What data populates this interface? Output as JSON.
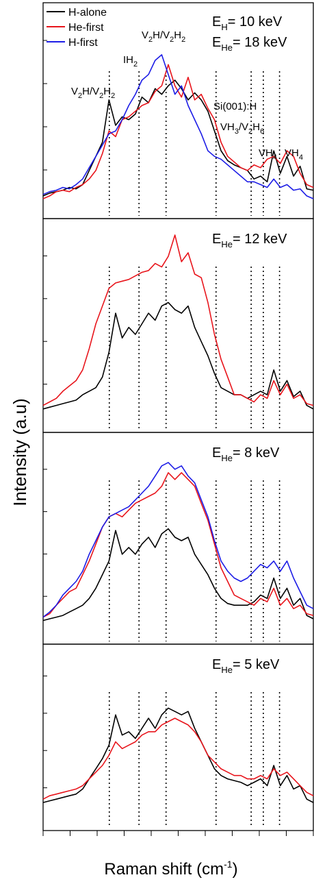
{
  "colors": {
    "H-alone": "#000000",
    "He-first": "#e8141b",
    "H-first": "#1c1ce6"
  },
  "legend": [
    {
      "name": "H-alone",
      "color": "#000000"
    },
    {
      "name": "He-first",
      "color": "#e8141b"
    },
    {
      "name": "H-first",
      "color": "#1c1ce6"
    }
  ],
  "chart_data": {
    "type": "line",
    "ylabel": "Intensity (a.u)",
    "xlabel_main": "Raman shift (cm",
    "xlabel_sup": "-1",
    "xlabel_close": ")",
    "x_tick_labels": "none",
    "y_tick_labels": "none",
    "ylim": [
      0,
      1
    ],
    "xlim": [
      0,
      100
    ],
    "panel_header": {
      "EH_main": "E",
      "EH_sub": "H",
      "EH_rest": "= 10 keV"
    },
    "peak_labels": [
      {
        "parts": [
          [
            "V",
            "n"
          ],
          [
            "2",
            "s"
          ],
          [
            "H/V",
            "n"
          ],
          [
            "2",
            "s"
          ],
          [
            "H",
            "n"
          ],
          [
            "2",
            "s"
          ]
        ]
      },
      {
        "parts": [
          [
            "IH",
            "n"
          ],
          [
            "2",
            "s"
          ]
        ]
      },
      {
        "parts": [
          [
            "V",
            "n"
          ],
          [
            "2",
            "s"
          ],
          [
            "H/V",
            "n"
          ],
          [
            "2",
            "s"
          ],
          [
            "H",
            "n"
          ],
          [
            "2",
            "s"
          ]
        ]
      },
      {
        "parts": [
          [
            "Si(001):H",
            "n"
          ]
        ]
      },
      {
        "parts": [
          [
            "VH",
            "n"
          ],
          [
            "3",
            "s"
          ],
          [
            "/V",
            "n"
          ],
          [
            "2",
            "s"
          ],
          [
            "H",
            "n"
          ],
          [
            "6",
            "s"
          ]
        ]
      },
      {
        "parts": [
          [
            "VH",
            "n"
          ],
          [
            "4",
            "s"
          ]
        ]
      },
      {
        "parts": [
          [
            "VH",
            "n"
          ],
          [
            "4",
            "s"
          ]
        ]
      }
    ],
    "peak_positions": [
      24.5,
      35.5,
      45.5,
      64.0,
      77.0,
      81.5,
      87.5
    ],
    "panels": [
      {
        "energy_main": "E",
        "energy_sub": "He",
        "energy_rest": "= 18 keV",
        "series": [
          {
            "name": "H-alone",
            "y": [
              0.02,
              0.04,
              0.05,
              0.06,
              0.08,
              0.07,
              0.1,
              0.2,
              0.3,
              0.4,
              0.7,
              0.52,
              0.58,
              0.56,
              0.6,
              0.72,
              0.68,
              0.78,
              0.74,
              0.8,
              0.84,
              0.78,
              0.7,
              0.75,
              0.7,
              0.62,
              0.48,
              0.34,
              0.27,
              0.24,
              0.22,
              0.2,
              0.14,
              0.16,
              0.12,
              0.34,
              0.18,
              0.3,
              0.16,
              0.23,
              0.07,
              0.06
            ]
          },
          {
            "name": "He-first",
            "y": [
              0.0,
              0.02,
              0.05,
              0.06,
              0.05,
              0.08,
              0.1,
              0.14,
              0.2,
              0.32,
              0.48,
              0.44,
              0.56,
              0.58,
              0.62,
              0.66,
              0.68,
              0.76,
              0.8,
              0.95,
              0.8,
              0.72,
              0.86,
              0.7,
              0.74,
              0.64,
              0.56,
              0.4,
              0.3,
              0.26,
              0.22,
              0.2,
              0.24,
              0.22,
              0.28,
              0.3,
              0.25,
              0.34,
              0.3,
              0.18,
              0.1,
              0.08
            ]
          },
          {
            "name": "H-first",
            "y": [
              0.03,
              0.05,
              0.06,
              0.08,
              0.07,
              0.1,
              0.14,
              0.22,
              0.3,
              0.38,
              0.46,
              0.48,
              0.56,
              0.66,
              0.74,
              0.84,
              0.88,
              0.98,
              1.02,
              0.88,
              0.74,
              0.8,
              0.66,
              0.56,
              0.46,
              0.34,
              0.3,
              0.28,
              0.24,
              0.2,
              0.16,
              0.12,
              0.12,
              0.1,
              0.08,
              0.14,
              0.08,
              0.1,
              0.06,
              0.07,
              0.02,
              0.0
            ]
          }
        ]
      },
      {
        "energy_main": "E",
        "energy_sub": "He",
        "energy_rest": "= 12 keV",
        "series": [
          {
            "name": "H-alone",
            "y": [
              0.02,
              0.03,
              0.04,
              0.05,
              0.06,
              0.07,
              0.1,
              0.12,
              0.14,
              0.2,
              0.34,
              0.56,
              0.42,
              0.48,
              0.44,
              0.5,
              0.56,
              0.52,
              0.6,
              0.62,
              0.58,
              0.56,
              0.6,
              0.48,
              0.4,
              0.32,
              0.22,
              0.14,
              0.12,
              0.1,
              0.1,
              0.08,
              0.1,
              0.12,
              0.1,
              0.24,
              0.12,
              0.18,
              0.09,
              0.12,
              0.04,
              0.02
            ]
          },
          {
            "name": "He-first",
            "y": [
              0.04,
              0.06,
              0.08,
              0.12,
              0.15,
              0.18,
              0.24,
              0.36,
              0.5,
              0.6,
              0.7,
              0.73,
              0.74,
              0.75,
              0.77,
              0.79,
              0.8,
              0.84,
              0.82,
              0.88,
              1.0,
              0.85,
              0.9,
              0.78,
              0.76,
              0.62,
              0.44,
              0.3,
              0.2,
              0.1,
              0.1,
              0.08,
              0.06,
              0.1,
              0.08,
              0.18,
              0.1,
              0.16,
              0.08,
              0.1,
              0.05,
              0.04
            ]
          }
        ]
      },
      {
        "energy_main": "E",
        "energy_sub": "He",
        "energy_rest": "=  8 keV",
        "series": [
          {
            "name": "H-alone",
            "y": [
              0.01,
              0.02,
              0.03,
              0.04,
              0.06,
              0.08,
              0.1,
              0.14,
              0.2,
              0.28,
              0.36,
              0.54,
              0.4,
              0.44,
              0.4,
              0.46,
              0.5,
              0.44,
              0.52,
              0.55,
              0.5,
              0.48,
              0.5,
              0.4,
              0.34,
              0.28,
              0.2,
              0.14,
              0.11,
              0.1,
              0.1,
              0.1,
              0.12,
              0.16,
              0.14,
              0.26,
              0.14,
              0.2,
              0.1,
              0.14,
              0.04,
              0.02
            ]
          },
          {
            "name": "He-first",
            "y": [
              0.03,
              0.05,
              0.1,
              0.14,
              0.18,
              0.2,
              0.28,
              0.36,
              0.46,
              0.56,
              0.62,
              0.64,
              0.62,
              0.66,
              0.7,
              0.72,
              0.74,
              0.76,
              0.8,
              0.88,
              0.84,
              0.88,
              0.84,
              0.8,
              0.7,
              0.6,
              0.46,
              0.32,
              0.24,
              0.16,
              0.14,
              0.12,
              0.1,
              0.14,
              0.12,
              0.2,
              0.1,
              0.14,
              0.08,
              0.1,
              0.05,
              0.04
            ]
          },
          {
            "name": "H-first",
            "y": [
              0.03,
              0.06,
              0.1,
              0.16,
              0.2,
              0.24,
              0.3,
              0.4,
              0.48,
              0.56,
              0.62,
              0.64,
              0.66,
              0.68,
              0.72,
              0.76,
              0.8,
              0.86,
              0.92,
              0.94,
              0.9,
              0.92,
              0.86,
              0.82,
              0.72,
              0.62,
              0.48,
              0.36,
              0.3,
              0.26,
              0.24,
              0.26,
              0.3,
              0.34,
              0.32,
              0.36,
              0.3,
              0.36,
              0.26,
              0.18,
              0.1,
              0.08
            ]
          }
        ]
      },
      {
        "energy_main": "E",
        "energy_sub": "He",
        "energy_rest": "=  5 keV",
        "series": [
          {
            "name": "H-alone",
            "y": [
              0.02,
              0.03,
              0.04,
              0.05,
              0.06,
              0.07,
              0.1,
              0.16,
              0.22,
              0.28,
              0.36,
              0.54,
              0.42,
              0.44,
              0.4,
              0.46,
              0.52,
              0.46,
              0.54,
              0.58,
              0.56,
              0.54,
              0.56,
              0.46,
              0.38,
              0.3,
              0.22,
              0.18,
              0.16,
              0.15,
              0.14,
              0.12,
              0.14,
              0.16,
              0.12,
              0.24,
              0.12,
              0.18,
              0.1,
              0.12,
              0.04,
              0.02
            ]
          },
          {
            "name": "He-first",
            "y": [
              0.04,
              0.06,
              0.07,
              0.08,
              0.09,
              0.1,
              0.12,
              0.16,
              0.2,
              0.24,
              0.3,
              0.38,
              0.34,
              0.36,
              0.38,
              0.42,
              0.44,
              0.44,
              0.48,
              0.5,
              0.52,
              0.5,
              0.48,
              0.44,
              0.38,
              0.3,
              0.26,
              0.22,
              0.2,
              0.18,
              0.18,
              0.16,
              0.16,
              0.18,
              0.16,
              0.22,
              0.18,
              0.2,
              0.16,
              0.12,
              0.08,
              0.06
            ]
          }
        ]
      }
    ]
  }
}
